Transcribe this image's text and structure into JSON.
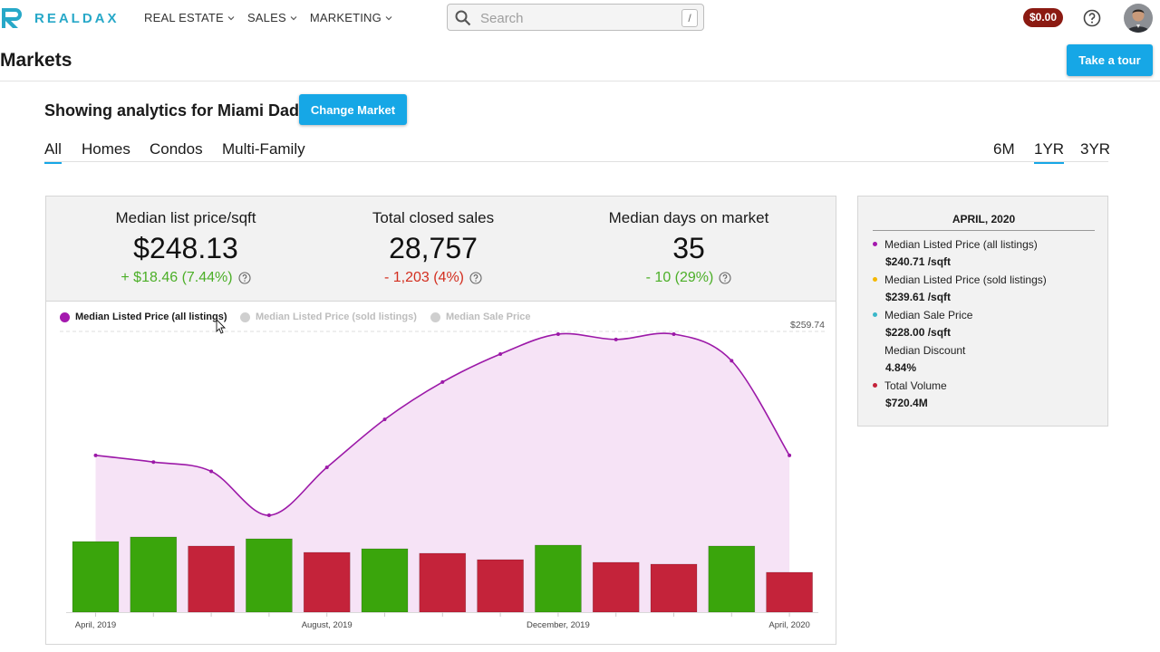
{
  "brand": {
    "name": "REALDAX",
    "color": "#27a8c8"
  },
  "nav": [
    {
      "label": "REAL ESTATE"
    },
    {
      "label": "SALES"
    },
    {
      "label": "MARKETING"
    }
  ],
  "search": {
    "placeholder": "Search",
    "shortcut": "/"
  },
  "account": {
    "balance": "$0.00"
  },
  "page": {
    "title": "Markets",
    "tour_label": "Take a tour"
  },
  "market": {
    "showing_text": "Showing analytics for Miami Dade",
    "change_label": "Change Market"
  },
  "property_tabs": [
    {
      "label": "All",
      "active": true
    },
    {
      "label": "Homes",
      "active": false
    },
    {
      "label": "Condos",
      "active": false
    },
    {
      "label": "Multi-Family",
      "active": false
    }
  ],
  "range_tabs": [
    {
      "label": "6M",
      "active": false
    },
    {
      "label": "1YR",
      "active": true
    },
    {
      "label": "3YR",
      "active": false
    }
  ],
  "stats": [
    {
      "label": "Median list price/sqft",
      "value": "$248.13",
      "change": "+ $18.46 (7.44%)",
      "trend": "positive"
    },
    {
      "label": "Total closed sales",
      "value": "28,757",
      "change": "- 1,203 (4%)",
      "trend": "negative"
    },
    {
      "label": "Median days on market",
      "value": "35",
      "change": "- 10 (29%)",
      "trend": "positive"
    }
  ],
  "colors": {
    "accent": "#16a7e6",
    "line": "#9c19a8",
    "area": "#f6e3f6",
    "bar_up": "#3aa50c",
    "bar_down": "#c4233a",
    "positive": "#4caf28",
    "negative": "#d32f20",
    "legend_active": "#a419ae",
    "legend_inactive": "#cfcfcf"
  },
  "chart_data": {
    "type": "line",
    "legend": [
      {
        "name": "Median Listed Price (all listings)",
        "active": true
      },
      {
        "name": "Median Listed Price (sold listings)",
        "active": false
      },
      {
        "name": "Median Sale Price",
        "active": false
      }
    ],
    "x_ticks": [
      "April, 2019",
      "August, 2019",
      "December, 2019",
      "April, 2020"
    ],
    "max_label": "$259.74",
    "series": [
      {
        "name": "Median Listed Price (all listings)",
        "values": [
          240.7,
          240.2,
          239.5,
          236.2,
          239.8,
          243.4,
          246.2,
          248.3,
          249.8,
          249.4,
          249.8,
          247.8,
          240.7
        ]
      }
    ],
    "volume_bars": [
      {
        "height": 78,
        "trend": "up"
      },
      {
        "height": 83,
        "trend": "up"
      },
      {
        "height": 73,
        "trend": "down"
      },
      {
        "height": 81,
        "trend": "up"
      },
      {
        "height": 66,
        "trend": "down"
      },
      {
        "height": 70,
        "trend": "up"
      },
      {
        "height": 65,
        "trend": "down"
      },
      {
        "height": 58,
        "trend": "down"
      },
      {
        "height": 74,
        "trend": "up"
      },
      {
        "height": 55,
        "trend": "down"
      },
      {
        "height": 53,
        "trend": "down"
      },
      {
        "height": 73,
        "trend": "up"
      },
      {
        "height": 44,
        "trend": "down"
      }
    ]
  },
  "side_panel": {
    "title": "APRIL, 2020",
    "items": [
      {
        "label": "Median Listed Price (all listings)",
        "value": "$240.71 /sqft",
        "dot": "#a419ae"
      },
      {
        "label": "Median Listed Price (sold listings)",
        "value": "$239.61 /sqft",
        "dot": "#f5b800"
      },
      {
        "label": "Median Sale Price",
        "value": "$228.00 /sqft",
        "dot": "#3ab7c9"
      },
      {
        "label": "Median Discount",
        "value": "4.84%",
        "dot": ""
      },
      {
        "label": "Total Volume",
        "value": "$720.4M",
        "dot": "#c4233a"
      }
    ]
  }
}
